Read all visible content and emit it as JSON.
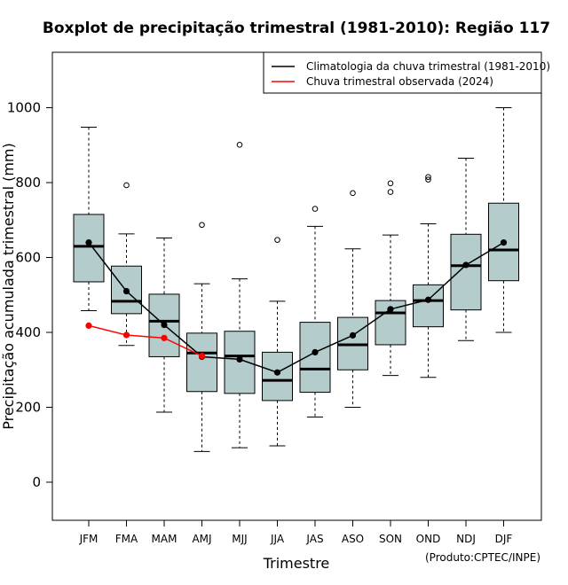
{
  "chart_data": {
    "type": "boxplot",
    "title": "Boxplot de precipitação trimestral (1981-2010): Região 117",
    "xlabel": "Trimestre",
    "ylabel": "Precipitação acumulada trimestral (mm)",
    "credit": "(Produto:CPTEC/INPE)",
    "ylim": [
      -100,
      1150
    ],
    "yticks": [
      0,
      200,
      400,
      600,
      800,
      1000
    ],
    "legend_position": "top-right",
    "categories": [
      "JFM",
      "FMA",
      "MAM",
      "AMJ",
      "MJJ",
      "JJA",
      "JAS",
      "ASO",
      "SON",
      "OND",
      "NDJ",
      "DJF"
    ],
    "boxes": [
      {
        "whisker_low": 458,
        "q1": 535,
        "median": 630,
        "q3": 715,
        "whisker_high": 948,
        "outliers": []
      },
      {
        "whisker_low": 365,
        "q1": 450,
        "median": 483,
        "q3": 577,
        "whisker_high": 663,
        "outliers": [
          793
        ]
      },
      {
        "whisker_low": 187,
        "q1": 335,
        "median": 430,
        "q3": 502,
        "whisker_high": 652,
        "outliers": []
      },
      {
        "whisker_low": 82,
        "q1": 242,
        "median": 345,
        "q3": 398,
        "whisker_high": 530,
        "outliers": [
          687
        ]
      },
      {
        "whisker_low": 92,
        "q1": 237,
        "median": 337,
        "q3": 403,
        "whisker_high": 543,
        "outliers": [
          901
        ]
      },
      {
        "whisker_low": 97,
        "q1": 218,
        "median": 272,
        "q3": 347,
        "whisker_high": 483,
        "outliers": [
          647
        ]
      },
      {
        "whisker_low": 174,
        "q1": 240,
        "median": 302,
        "q3": 427,
        "whisker_high": 683,
        "outliers": [
          730
        ]
      },
      {
        "whisker_low": 200,
        "q1": 300,
        "median": 367,
        "q3": 440,
        "whisker_high": 623,
        "outliers": [
          772
        ]
      },
      {
        "whisker_low": 285,
        "q1": 367,
        "median": 452,
        "q3": 485,
        "whisker_high": 660,
        "outliers": [
          775,
          798
        ]
      },
      {
        "whisker_low": 280,
        "q1": 415,
        "median": 485,
        "q3": 527,
        "whisker_high": 690,
        "outliers": [
          808,
          815
        ]
      },
      {
        "whisker_low": 378,
        "q1": 460,
        "median": 578,
        "q3": 662,
        "whisker_high": 865,
        "outliers": []
      },
      {
        "whisker_low": 400,
        "q1": 538,
        "median": 620,
        "q3": 745,
        "whisker_high": 1000,
        "outliers": []
      }
    ],
    "series": [
      {
        "name": "Climatologia da chuva trimestral (1981-2010)",
        "color": "#000000",
        "values": [
          640,
          510,
          420,
          335,
          328,
          293,
          347,
          392,
          462,
          487,
          580,
          640
        ]
      },
      {
        "name": "Chuva trimestral observada (2024)",
        "color": "#ff0000",
        "values": [
          418,
          393,
          385,
          337,
          null,
          null,
          null,
          null,
          null,
          null,
          null,
          null
        ]
      }
    ],
    "box_fill": "#b4cccc"
  }
}
